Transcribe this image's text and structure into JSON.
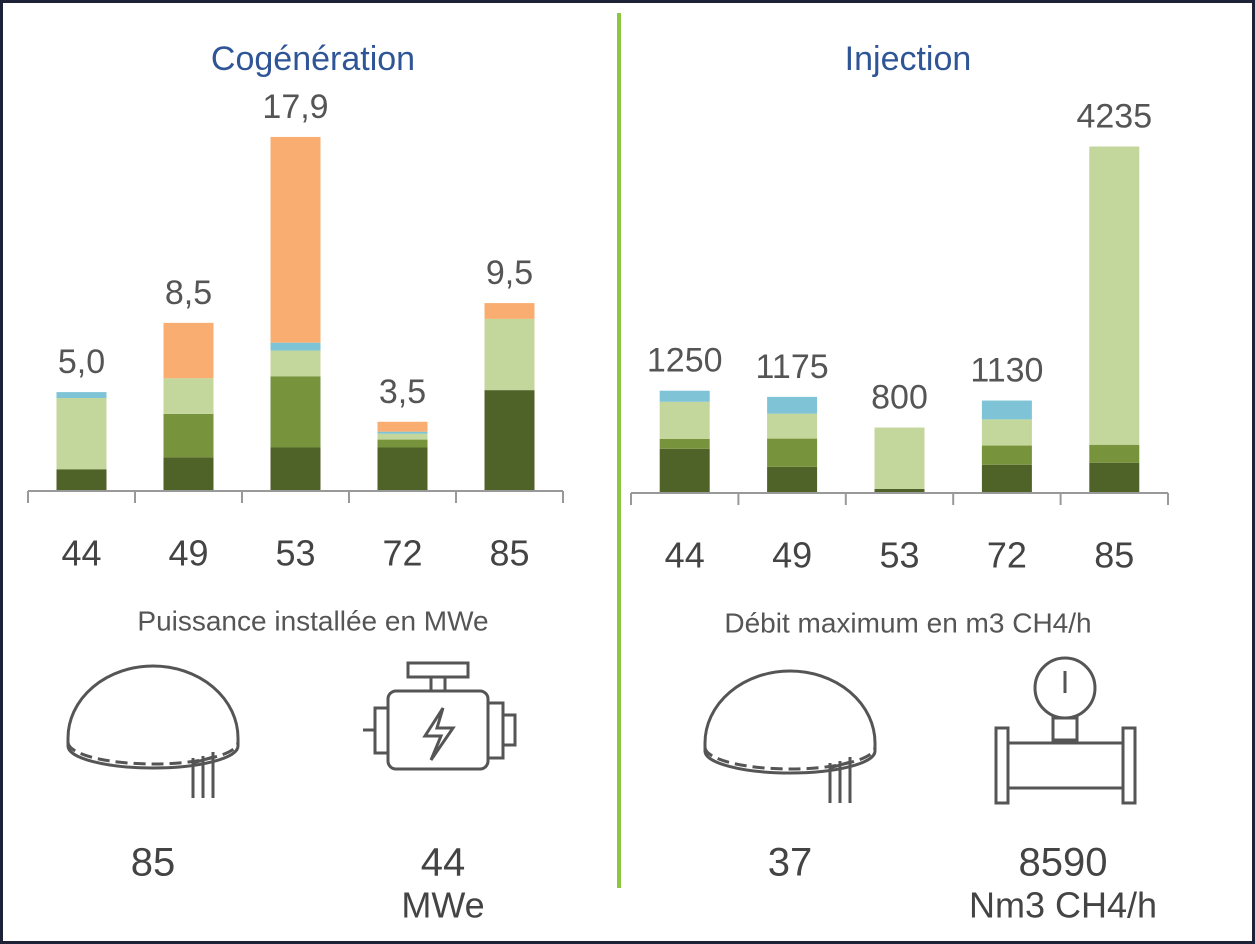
{
  "chart_data": [
    {
      "type": "bar",
      "stacked": true,
      "title": "Cogénération",
      "categories": [
        "44",
        "49",
        "53",
        "72",
        "85"
      ],
      "series": [
        {
          "color": "#4f6228",
          "values": [
            1.1,
            1.7,
            2.2,
            2.2,
            5.1
          ]
        },
        {
          "color": "#77933c",
          "values": [
            0,
            2.2,
            3.6,
            0.4,
            0
          ]
        },
        {
          "color": "#c3d69b",
          "values": [
            3.6,
            1.8,
            1.3,
            0.3,
            3.6
          ]
        },
        {
          "color": "#7fc4d6",
          "values": [
            0.3,
            0,
            0.4,
            0.1,
            0
          ]
        },
        {
          "color": "#f9ad70",
          "values": [
            0,
            2.8,
            10.4,
            0.5,
            0.8
          ]
        }
      ],
      "totals": [
        5.0,
        8.5,
        17.9,
        3.5,
        9.5
      ],
      "total_labels": [
        "5,0",
        "8,5",
        "17,9",
        "3,5",
        "9,5"
      ],
      "ylim": [
        0,
        18.2
      ],
      "x_label": "Puissance installée en MWe",
      "stats": [
        {
          "value": "85"
        },
        {
          "value": "44",
          "unit": "MWe"
        }
      ]
    },
    {
      "type": "bar",
      "stacked": true,
      "title": "Injection",
      "categories": [
        "44",
        "49",
        "53",
        "72",
        "85"
      ],
      "series": [
        {
          "color": "#4f6228",
          "values": [
            540,
            320,
            50,
            345,
            370
          ]
        },
        {
          "color": "#77933c",
          "values": [
            120,
            345,
            0,
            235,
            220
          ]
        },
        {
          "color": "#c3d69b",
          "values": [
            455,
            305,
            750,
            320,
            3645
          ]
        },
        {
          "color": "#7fc4d6",
          "values": [
            135,
            205,
            0,
            230,
            0
          ]
        },
        {
          "color": "#f9ad70",
          "values": [
            0,
            0,
            0,
            0,
            0
          ]
        }
      ],
      "totals": [
        1250,
        1175,
        800,
        1130,
        4235
      ],
      "ylim": [
        0,
        4400
      ],
      "x_label": "Débit maximum en m3 CH4/h",
      "stats": [
        {
          "value": "37"
        },
        {
          "value": "8590",
          "unit": "Nm3 CH4/h"
        }
      ]
    }
  ]
}
